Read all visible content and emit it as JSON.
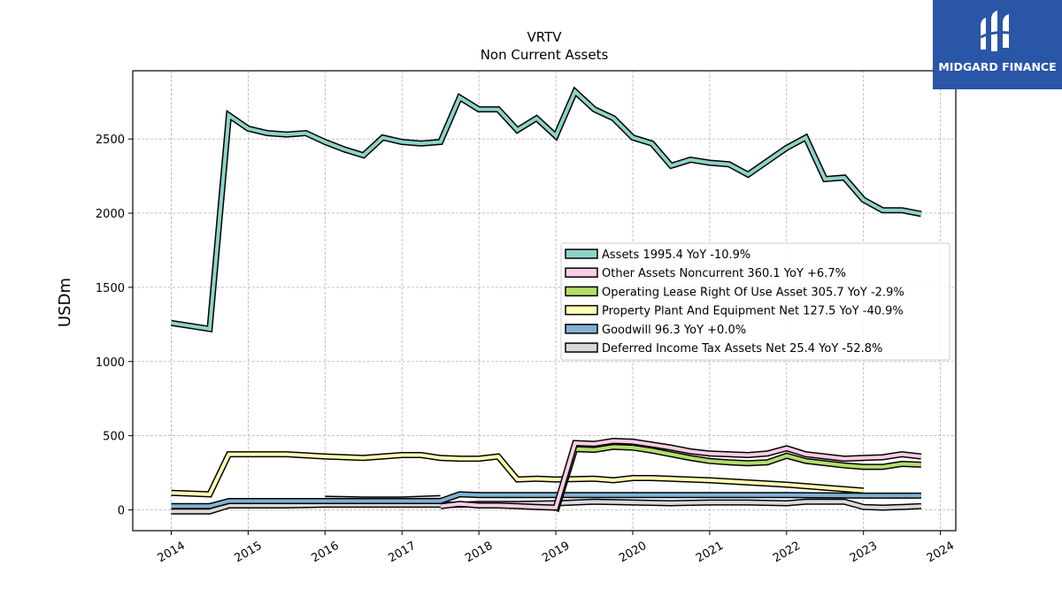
{
  "logo": {
    "text": "MIDGARD FINANCE"
  },
  "chart_data": {
    "type": "line",
    "title": "VRTV",
    "subtitle": "Non Current  Assets",
    "xlabel": "",
    "ylabel": "USDm",
    "xlim": [
      2013.5,
      2024.2
    ],
    "ylim": [
      -140,
      2960
    ],
    "x_ticks": [
      "2014",
      "2015",
      "2016",
      "2017",
      "2018",
      "2019",
      "2020",
      "2021",
      "2022",
      "2023",
      "2024"
    ],
    "y_ticks": [
      0,
      500,
      1000,
      1500,
      2000,
      2500
    ],
    "grid": true,
    "legend_position": "center-right",
    "series": [
      {
        "name": "Assets  1995.4 YoY -10.9%",
        "color": "#8dd3c7",
        "x": [
          2014.0,
          2014.5,
          2014.75,
          2015.0,
          2015.25,
          2015.5,
          2015.75,
          2016.0,
          2016.25,
          2016.5,
          2016.75,
          2017.0,
          2017.25,
          2017.5,
          2017.75,
          2018.0,
          2018.25,
          2018.5,
          2018.75,
          2019.0,
          2019.25,
          2019.5,
          2019.75,
          2020.0,
          2020.25,
          2020.5,
          2020.75,
          2021.0,
          2021.25,
          2021.5,
          2021.75,
          2022.0,
          2022.25,
          2022.5,
          2022.75,
          2023.0,
          2023.25,
          2023.5,
          2023.75
        ],
        "values": [
          1260,
          1220,
          2660,
          2570,
          2540,
          2530,
          2540,
          2480,
          2430,
          2390,
          2510,
          2480,
          2470,
          2480,
          2780,
          2700,
          2700,
          2560,
          2640,
          2520,
          2820,
          2700,
          2640,
          2510,
          2470,
          2320,
          2360,
          2340,
          2330,
          2260,
          2350,
          2440,
          2510,
          2230,
          2240,
          2090,
          2020,
          2020,
          1995
        ]
      },
      {
        "name": "Other Assets Noncurrent  360.1 YoY +6.7%",
        "color": "#fccde5",
        "x": [
          2017.5,
          2017.75,
          2018.0,
          2018.25,
          2018.5,
          2018.75,
          2019.0,
          2019.25,
          2019.5,
          2019.75,
          2020.0,
          2020.25,
          2020.5,
          2020.75,
          2021.0,
          2021.25,
          2021.5,
          2021.75,
          2022.0,
          2022.25,
          2022.5,
          2022.75,
          2023.0,
          2023.25,
          2023.5,
          2023.75
        ],
        "values": [
          25,
          40,
          30,
          30,
          25,
          20,
          15,
          450,
          445,
          465,
          460,
          440,
          420,
          395,
          380,
          375,
          370,
          380,
          415,
          375,
          360,
          345,
          350,
          355,
          375,
          360
        ]
      },
      {
        "name": "Operating Lease Right Of Use Asset  305.7 YoY -2.9%",
        "color": "#b3de69",
        "x": [
          2019.0,
          2019.25,
          2019.5,
          2019.75,
          2020.0,
          2020.25,
          2020.5,
          2020.75,
          2021.0,
          2021.25,
          2021.5,
          2021.75,
          2022.0,
          2022.25,
          2022.5,
          2022.75,
          2023.0,
          2023.25,
          2023.5,
          2023.75
        ],
        "values": [
          -10,
          410,
          405,
          425,
          420,
          400,
          375,
          350,
          330,
          320,
          315,
          320,
          365,
          330,
          315,
          300,
          290,
          290,
          310,
          305
        ]
      },
      {
        "name": "Property Plant And Equipment Net  127.5 YoY -40.9%",
        "color": "#ffffb3",
        "x": [
          2014.0,
          2014.5,
          2014.75,
          2015.0,
          2015.5,
          2016.0,
          2016.5,
          2016.75,
          2017.0,
          2017.25,
          2017.5,
          2017.75,
          2018.0,
          2018.25,
          2018.5,
          2018.75,
          2019.0,
          2019.5,
          2019.75,
          2020.0,
          2020.25,
          2021.0,
          2022.0,
          2023.0
        ],
        "values": [
          115,
          105,
          375,
          375,
          375,
          360,
          350,
          360,
          370,
          370,
          350,
          345,
          345,
          360,
          205,
          210,
          205,
          210,
          200,
          215,
          215,
          200,
          170,
          130
        ]
      },
      {
        "name": "Goodwill  96.3 YoY +0.0%",
        "color": "#80b1d3",
        "x": [
          2014.0,
          2014.5,
          2014.75,
          2015.0,
          2015.5,
          2016.0,
          2016.5,
          2017.0,
          2017.5,
          2017.75,
          2018.0,
          2018.5,
          2019.0,
          2019.5,
          2020.0,
          2021.0,
          2022.0,
          2023.0,
          2023.75
        ],
        "values": [
          25,
          25,
          60,
          60,
          60,
          60,
          60,
          60,
          60,
          105,
          100,
          100,
          100,
          100,
          100,
          100,
          100,
          96,
          96
        ]
      },
      {
        "name": "Deferred Income Tax Assets Net  25.4 YoY -52.8%",
        "color": "#d9d9d9",
        "x": [
          2014.0,
          2014.5,
          2014.75,
          2015.0,
          2015.5,
          2016.0,
          2016.5,
          2017.0,
          2017.5,
          2017.75,
          2018.0,
          2018.5,
          2019.0,
          2019.5,
          2020.0,
          2020.5,
          2021.0,
          2021.5,
          2022.0,
          2022.25,
          2022.75,
          2023.0,
          2023.25,
          2023.5,
          2023.75
        ],
        "values": [
          -10,
          -10,
          30,
          30,
          30,
          35,
          35,
          35,
          35,
          35,
          40,
          40,
          45,
          55,
          50,
          45,
          50,
          50,
          45,
          55,
          55,
          20,
          15,
          20,
          25
        ]
      }
    ],
    "extra_lines": [
      {
        "color": "#d9d9d9",
        "x": [
          2016.0,
          2016.5,
          2017.0,
          2017.5
        ],
        "values": [
          75,
          70,
          70,
          80
        ]
      }
    ]
  }
}
